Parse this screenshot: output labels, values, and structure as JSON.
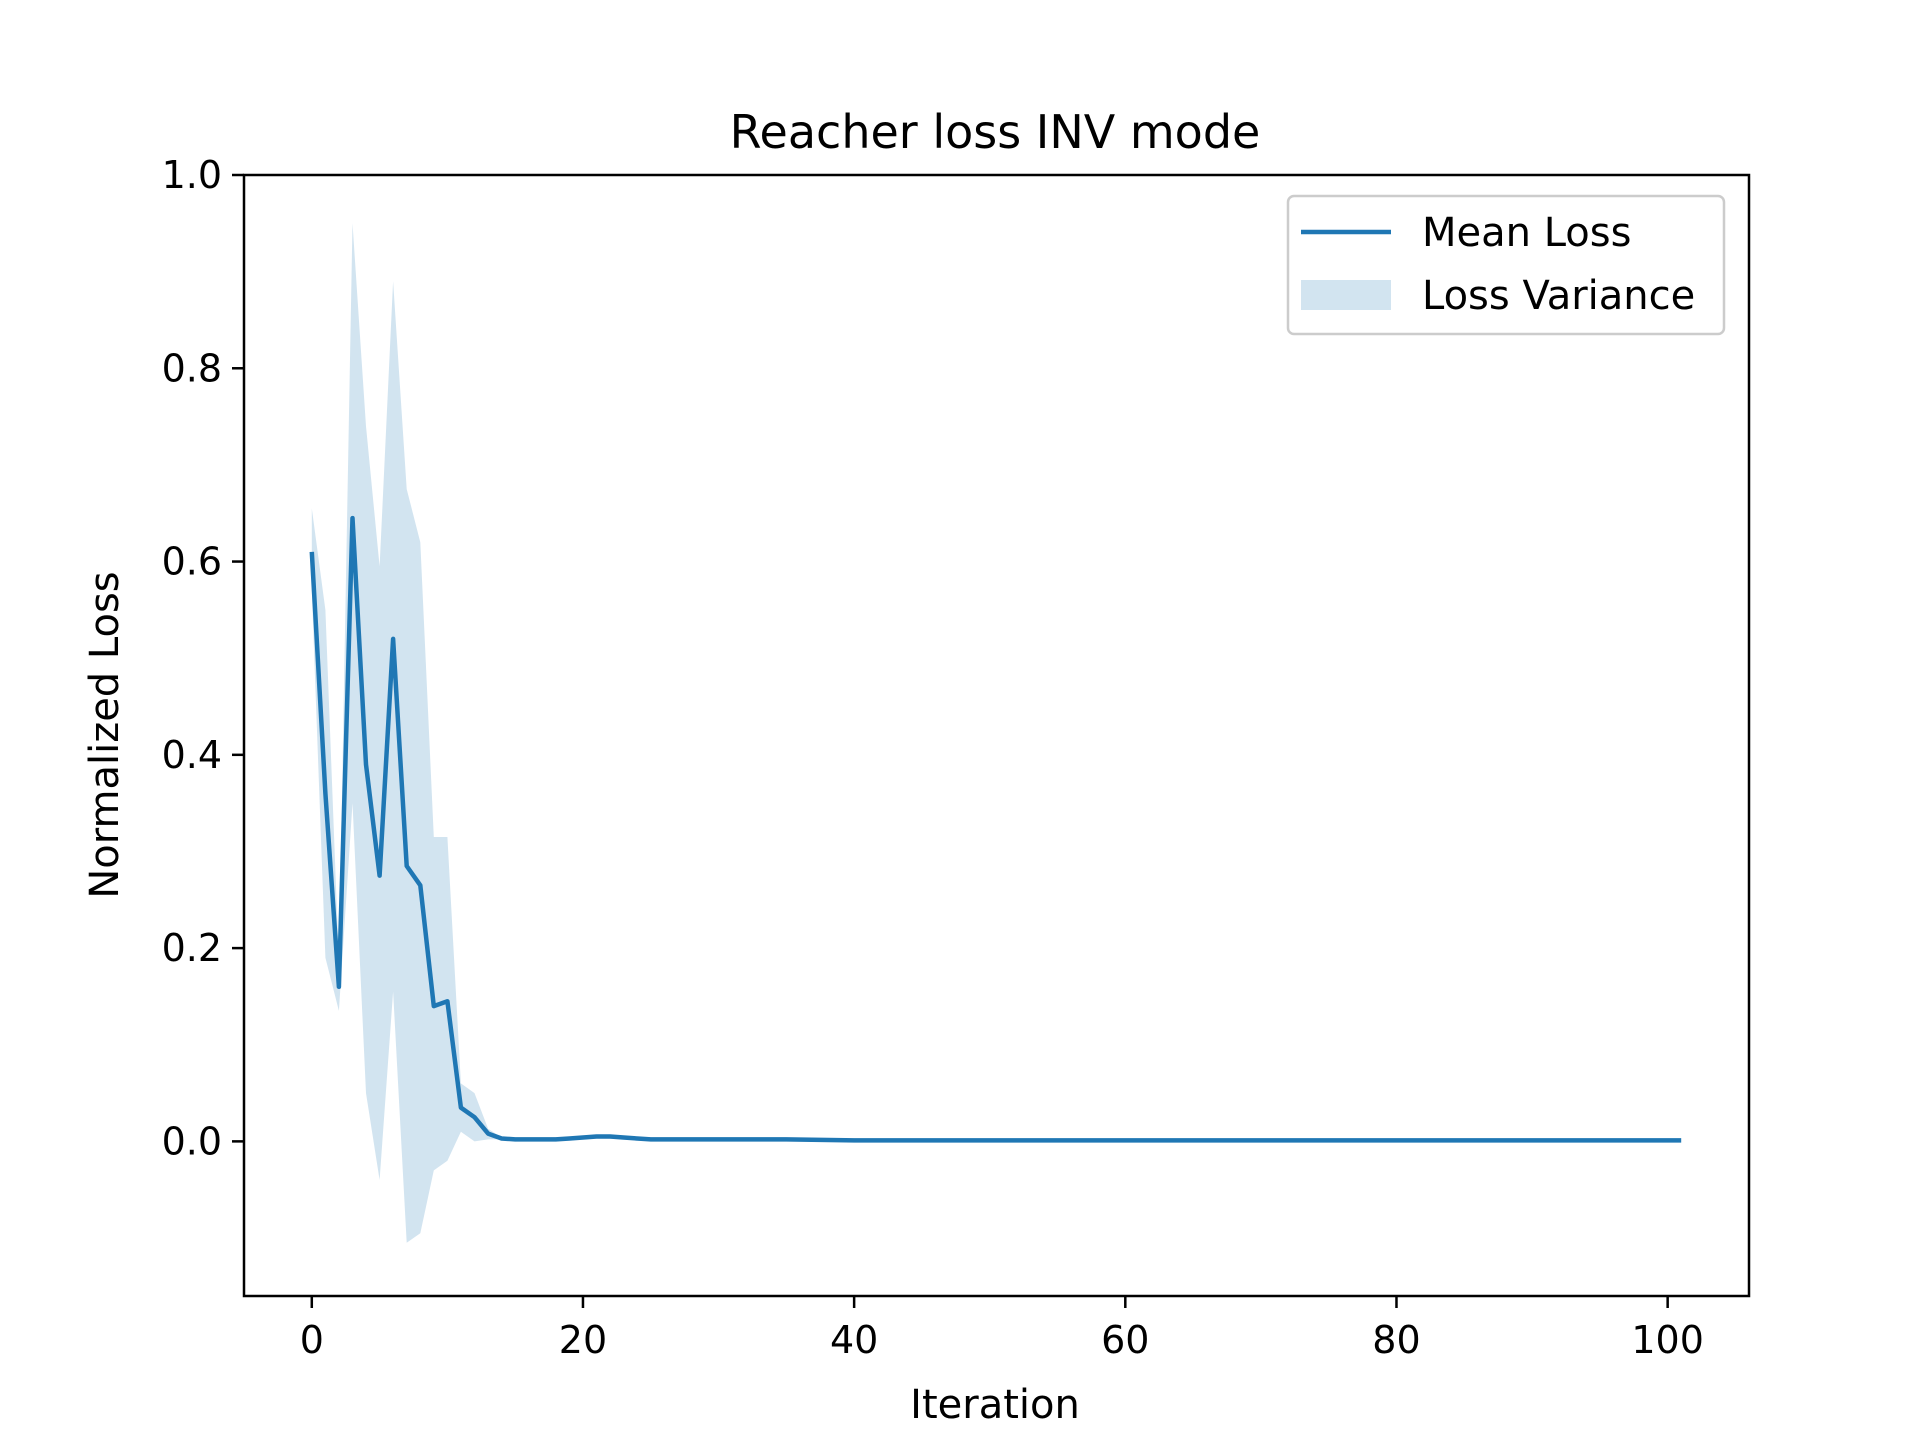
{
  "chart_data": {
    "type": "line",
    "title": "Reacher loss INV mode",
    "xlabel": "Iteration",
    "ylabel": "Normalized Loss",
    "xlim": [
      -5,
      106
    ],
    "ylim": [
      -0.16,
      1.0
    ],
    "xticks": [
      0,
      20,
      40,
      60,
      80,
      100
    ],
    "xtick_labels": [
      "0",
      "20",
      "40",
      "60",
      "80",
      "100"
    ],
    "yticks": [
      0.0,
      0.2,
      0.4,
      0.6,
      0.8,
      1.0
    ],
    "ytick_labels": [
      "0.0",
      "0.2",
      "0.4",
      "0.6",
      "0.8",
      "1.0"
    ],
    "grid": false,
    "legend_position": "top-right",
    "colors": {
      "line": "#1f77b4",
      "band": "#1f77b4",
      "band_opacity": 0.2
    },
    "series": [
      {
        "name": "Mean Loss",
        "kind": "line",
        "x": [
          0,
          1,
          2,
          3,
          4,
          5,
          6,
          7,
          8,
          9,
          10,
          11,
          12,
          13,
          14,
          15,
          16,
          17,
          18,
          19,
          20,
          21,
          22,
          23,
          24,
          25,
          26,
          27,
          28,
          29,
          30,
          35,
          40,
          45,
          50,
          55,
          60,
          65,
          70,
          75,
          80,
          85,
          90,
          95,
          100,
          101
        ],
        "y": [
          0.61,
          0.36,
          0.16,
          0.645,
          0.39,
          0.275,
          0.52,
          0.285,
          0.265,
          0.14,
          0.145,
          0.035,
          0.025,
          0.008,
          0.003,
          0.002,
          0.002,
          0.002,
          0.002,
          0.003,
          0.004,
          0.005,
          0.005,
          0.004,
          0.003,
          0.002,
          0.002,
          0.002,
          0.002,
          0.002,
          0.002,
          0.002,
          0.001,
          0.001,
          0.001,
          0.001,
          0.001,
          0.001,
          0.001,
          0.001,
          0.001,
          0.001,
          0.001,
          0.001,
          0.001,
          0.001
        ]
      },
      {
        "name": "Loss Variance",
        "kind": "band",
        "x": [
          0,
          1,
          2,
          3,
          4,
          5,
          6,
          7,
          8,
          9,
          10,
          11,
          12,
          13,
          14,
          15,
          20,
          30,
          40,
          60,
          80,
          100,
          101
        ],
        "lower": [
          0.57,
          0.19,
          0.135,
          0.35,
          0.05,
          -0.04,
          0.155,
          -0.105,
          -0.095,
          -0.03,
          -0.02,
          0.01,
          0.0,
          0.002,
          0.002,
          0.001,
          0.003,
          0.002,
          0.001,
          0.001,
          0.001,
          0.001,
          0.001
        ],
        "upper": [
          0.655,
          0.55,
          0.185,
          0.95,
          0.74,
          0.595,
          0.89,
          0.675,
          0.62,
          0.315,
          0.315,
          0.06,
          0.05,
          0.013,
          0.004,
          0.003,
          0.005,
          0.002,
          0.001,
          0.001,
          0.001,
          0.001,
          0.001
        ]
      }
    ]
  }
}
